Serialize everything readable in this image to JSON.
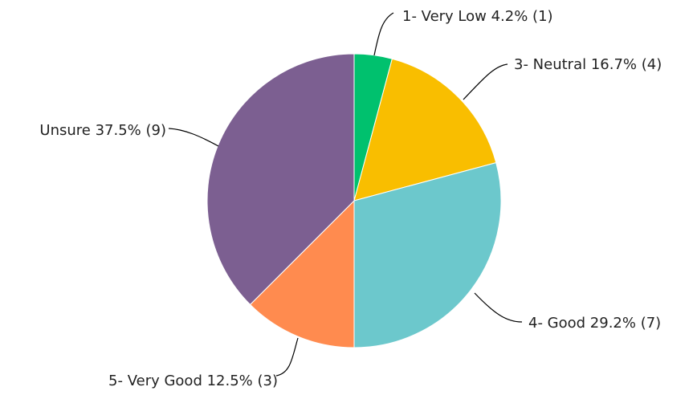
{
  "chart_data": {
    "type": "pie",
    "start_angle_deg": 0,
    "direction": "clockwise",
    "slices": [
      {
        "label": "1- Very Low 4.2% (1)",
        "category": "1- Very Low",
        "value": 1,
        "percent": 4.2,
        "color": "#00C16E"
      },
      {
        "label": "3- Neutral 16.7% (4)",
        "category": "3- Neutral",
        "value": 4,
        "percent": 16.7,
        "color": "#F9BE00"
      },
      {
        "label": "4- Good 29.2% (7)",
        "category": "4- Good",
        "value": 7,
        "percent": 29.2,
        "color": "#6CC8CC"
      },
      {
        "label": "5- Very Good 12.5% (3)",
        "category": "5- Very Good",
        "value": 3,
        "percent": 12.5,
        "color": "#FF8B4F"
      },
      {
        "label": "Unsure 37.5% (9)",
        "category": "Unsure",
        "value": 9,
        "percent": 37.5,
        "color": "#7C5F91"
      }
    ]
  }
}
